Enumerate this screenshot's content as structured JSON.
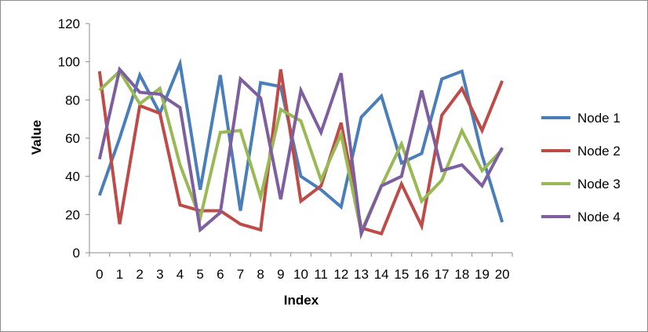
{
  "chart_data": {
    "type": "line",
    "title": "",
    "xlabel": "Index",
    "ylabel": "Value",
    "x": [
      0,
      1,
      2,
      3,
      4,
      5,
      6,
      7,
      8,
      9,
      10,
      11,
      12,
      13,
      14,
      15,
      16,
      17,
      18,
      19,
      20
    ],
    "ylim": [
      0,
      120
    ],
    "yticks": [
      0,
      20,
      40,
      60,
      80,
      100,
      120
    ],
    "grid": false,
    "legend_position": "right",
    "series": [
      {
        "name": "Node 1",
        "color": "#4A7EBB",
        "values": [
          30,
          60,
          93,
          73,
          99,
          33,
          93,
          22,
          89,
          87,
          40,
          33,
          24,
          71,
          82,
          47,
          52,
          91,
          95,
          51,
          16
        ]
      },
      {
        "name": "Node 2",
        "color": "#BE4B48",
        "values": [
          95,
          15,
          77,
          73,
          25,
          22,
          22,
          15,
          12,
          96,
          27,
          35,
          68,
          13,
          10,
          36,
          14,
          72,
          86,
          64,
          90
        ]
      },
      {
        "name": "Node 3",
        "color": "#98B954",
        "values": [
          85,
          95,
          78,
          86,
          46,
          18,
          63,
          64,
          29,
          75,
          69,
          38,
          62,
          11,
          35,
          57,
          27,
          38,
          64,
          43,
          54
        ]
      },
      {
        "name": "Node 4",
        "color": "#7D5FA0",
        "values": [
          49,
          96,
          84,
          83,
          76,
          12,
          21,
          91,
          81,
          28,
          85,
          63,
          94,
          10,
          35,
          40,
          85,
          43,
          46,
          35,
          55
        ]
      }
    ]
  }
}
